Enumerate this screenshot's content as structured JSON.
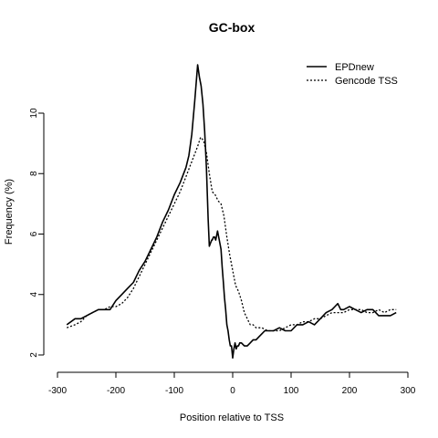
{
  "chart_data": {
    "type": "line",
    "title": "GC-box",
    "xlabel": "Position relative to TSS",
    "ylabel": "Frequency (%)",
    "xlim": [
      -300,
      300
    ],
    "ylim": [
      2,
      12
    ],
    "x_ticks": [
      -300,
      -200,
      -100,
      0,
      100,
      200,
      300
    ],
    "y_ticks": [
      2,
      4,
      6,
      8,
      10
    ],
    "grid": false,
    "legend_position": "top-right",
    "series": [
      {
        "name": "EPDnew",
        "line_style": "solid",
        "color": "#000000",
        "x": [
          -284,
          -270,
          -260,
          -250,
          -240,
          -230,
          -220,
          -210,
          -200,
          -190,
          -180,
          -170,
          -160,
          -150,
          -140,
          -130,
          -120,
          -110,
          -100,
          -90,
          -80,
          -75,
          -70,
          -65,
          -60,
          -57,
          -54,
          -51,
          -48,
          -45,
          -42,
          -40,
          -38,
          -36,
          -35,
          -33,
          -31,
          -29,
          -26,
          -23,
          -20,
          -18,
          -16,
          -14,
          -12,
          -10,
          -8,
          -6,
          -4,
          -2,
          0,
          2,
          4,
          6,
          8,
          10,
          12,
          15,
          20,
          25,
          30,
          35,
          40,
          45,
          50,
          55,
          60,
          70,
          80,
          90,
          100,
          110,
          120,
          130,
          140,
          150,
          160,
          170,
          175,
          180,
          185,
          190,
          200,
          210,
          220,
          230,
          240,
          250,
          260,
          270,
          280
        ],
        "y": [
          3.0,
          3.2,
          3.2,
          3.3,
          3.4,
          3.5,
          3.5,
          3.5,
          3.8,
          4.0,
          4.2,
          4.4,
          4.8,
          5.1,
          5.5,
          5.9,
          6.4,
          6.8,
          7.3,
          7.7,
          8.2,
          8.6,
          9.3,
          10.4,
          11.6,
          11.2,
          10.9,
          10.3,
          9.4,
          8.2,
          6.5,
          5.6,
          5.7,
          5.8,
          5.8,
          5.9,
          5.9,
          5.8,
          6.1,
          5.8,
          5.5,
          4.9,
          4.4,
          3.9,
          3.5,
          3.0,
          2.8,
          2.5,
          2.3,
          2.3,
          1.9,
          2.2,
          2.4,
          2.2,
          2.3,
          2.3,
          2.4,
          2.4,
          2.3,
          2.3,
          2.4,
          2.5,
          2.5,
          2.6,
          2.7,
          2.8,
          2.8,
          2.8,
          2.9,
          2.8,
          2.8,
          3.0,
          3.0,
          3.1,
          3.0,
          3.2,
          3.4,
          3.5,
          3.6,
          3.7,
          3.5,
          3.5,
          3.6,
          3.5,
          3.4,
          3.5,
          3.5,
          3.3,
          3.3,
          3.3,
          3.4
        ]
      },
      {
        "name": "Gencode TSS",
        "line_style": "dotted",
        "color": "#000000",
        "x": [
          -284,
          -270,
          -260,
          -250,
          -240,
          -230,
          -220,
          -210,
          -200,
          -190,
          -180,
          -170,
          -160,
          -150,
          -140,
          -130,
          -120,
          -110,
          -100,
          -90,
          -80,
          -70,
          -60,
          -55,
          -50,
          -45,
          -40,
          -35,
          -30,
          -25,
          -20,
          -15,
          -10,
          -5,
          0,
          5,
          10,
          15,
          20,
          25,
          30,
          35,
          40,
          50,
          60,
          70,
          80,
          90,
          100,
          110,
          120,
          130,
          140,
          150,
          160,
          170,
          180,
          190,
          200,
          210,
          220,
          230,
          240,
          250,
          260,
          270,
          280
        ],
        "y": [
          2.9,
          3.0,
          3.1,
          3.3,
          3.4,
          3.5,
          3.5,
          3.6,
          3.6,
          3.7,
          3.9,
          4.2,
          4.6,
          5.0,
          5.4,
          5.8,
          6.2,
          6.6,
          7.0,
          7.4,
          7.9,
          8.4,
          8.9,
          9.2,
          9.1,
          8.7,
          8.0,
          7.4,
          7.3,
          7.1,
          7.0,
          6.6,
          5.9,
          5.3,
          4.8,
          4.3,
          4.1,
          3.8,
          3.4,
          3.2,
          3.0,
          3.0,
          2.9,
          2.9,
          2.8,
          2.8,
          2.8,
          2.9,
          3.0,
          3.0,
          3.1,
          3.1,
          3.2,
          3.2,
          3.3,
          3.4,
          3.4,
          3.4,
          3.5,
          3.5,
          3.5,
          3.4,
          3.4,
          3.5,
          3.4,
          3.5,
          3.5
        ]
      }
    ]
  }
}
